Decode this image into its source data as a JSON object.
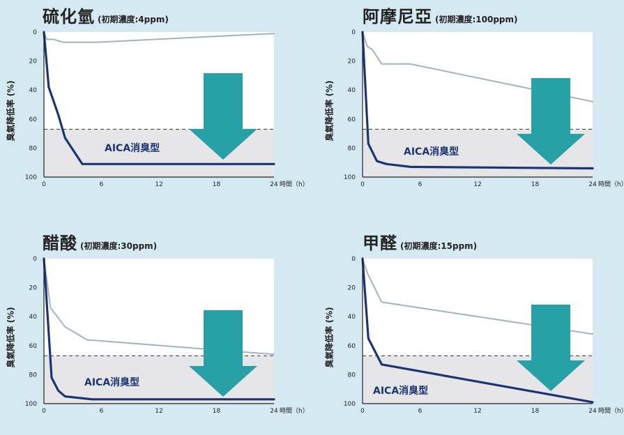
{
  "colors": {
    "background": "#d5e9f2",
    "plot_area": "#ffffff",
    "shaded_band": "#e6e6e8",
    "aica_line": "#1b3574",
    "comparison_line": "#a4b0c4",
    "arrow": "#27a0a6"
  },
  "icons": [
    "down-arrow-icon"
  ],
  "chart_data": [
    {
      "type": "line",
      "title": "硫化氫",
      "subtitle": "(初期濃度:4ppm)",
      "ylabel": "臭氣降低率 (%)",
      "xlabel": "時間（h）",
      "x_ticks": [
        "0",
        "6",
        "12",
        "18",
        "24"
      ],
      "y_ticks": [
        "0",
        "20",
        "40",
        "60",
        "80",
        "100"
      ],
      "xlim": [
        0,
        24
      ],
      "ylim": [
        0,
        100
      ],
      "y_inverted": true,
      "band_from": 67,
      "band_label": "AICA消臭型",
      "series": [
        {
          "name": "AICA消臭型",
          "x": [
            0,
            0.5,
            1.5,
            2.2,
            4,
            24
          ],
          "y": [
            0,
            38,
            57,
            73,
            91,
            91
          ]
        },
        {
          "name": "",
          "x": [
            0,
            0.3,
            1,
            2,
            5.5,
            24
          ],
          "y": [
            0,
            5,
            5,
            7,
            7,
            1
          ]
        }
      ]
    },
    {
      "type": "line",
      "title": "阿摩尼亞",
      "subtitle": "(初期濃度:100ppm)",
      "ylabel": "臭氣降低率 (%)",
      "xlabel": "時間（h）",
      "x_ticks": [
        "0",
        "6",
        "12",
        "18",
        "24"
      ],
      "y_ticks": [
        "0",
        "20",
        "40",
        "60",
        "80",
        "100"
      ],
      "xlim": [
        0,
        24
      ],
      "ylim": [
        0,
        100
      ],
      "y_inverted": true,
      "band_from": 67,
      "band_label": "AICA消臭型",
      "series": [
        {
          "name": "AICA消臭型",
          "x": [
            0,
            0.6,
            1.5,
            2.5,
            5,
            24
          ],
          "y": [
            0,
            77,
            89,
            91,
            93,
            94
          ]
        },
        {
          "name": "",
          "x": [
            0,
            0.5,
            1,
            2,
            5,
            24
          ],
          "y": [
            0,
            10,
            12,
            22,
            22,
            48
          ]
        }
      ]
    },
    {
      "type": "line",
      "title": "醋酸",
      "subtitle": "(初期濃度:30ppm)",
      "ylabel": "臭氣降低率 (%)",
      "xlabel": "時間（h）",
      "x_ticks": [
        "0",
        "6",
        "12",
        "18",
        "24"
      ],
      "y_ticks": [
        "0",
        "20",
        "40",
        "60",
        "80",
        "100"
      ],
      "xlim": [
        0,
        24
      ],
      "ylim": [
        0,
        100
      ],
      "y_inverted": true,
      "band_from": 67,
      "band_label": "AICA消臭型",
      "series": [
        {
          "name": "AICA消臭型",
          "x": [
            0,
            0.8,
            1.5,
            2.2,
            5,
            24
          ],
          "y": [
            0,
            82,
            91,
            95,
            97,
            97
          ]
        },
        {
          "name": "",
          "x": [
            0,
            0.7,
            2.2,
            4.5,
            24
          ],
          "y": [
            0,
            34,
            47,
            56,
            66
          ]
        }
      ]
    },
    {
      "type": "line",
      "title": "甲醛",
      "subtitle": "(初期濃度:15ppm)",
      "ylabel": "臭氣降低率 (%)",
      "xlabel": "時間（h）",
      "x_ticks": [
        "0",
        "6",
        "12",
        "18",
        "24"
      ],
      "y_ticks": [
        "0",
        "20",
        "40",
        "60",
        "80",
        "100"
      ],
      "xlim": [
        0,
        24
      ],
      "ylim": [
        0,
        100
      ],
      "y_inverted": true,
      "band_from": 67,
      "band_label": "AICA消臭型",
      "series": [
        {
          "name": "AICA消臭型",
          "x": [
            0,
            0.6,
            2,
            24
          ],
          "y": [
            0,
            55,
            73,
            99
          ]
        },
        {
          "name": "",
          "x": [
            0,
            0.5,
            2,
            24
          ],
          "y": [
            0,
            10,
            30,
            52
          ]
        }
      ]
    }
  ]
}
